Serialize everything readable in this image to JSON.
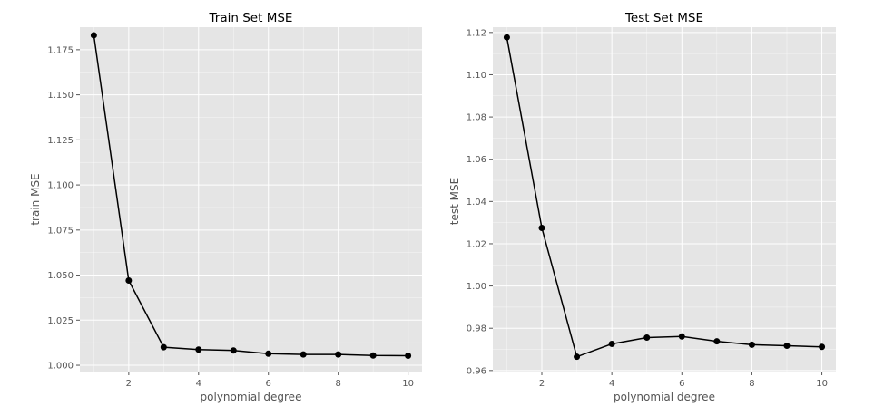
{
  "chart_data": [
    {
      "type": "line",
      "title": "Train Set MSE",
      "xlabel": "polynomial degree",
      "ylabel": "train MSE",
      "xlim": [
        0.6,
        10.4
      ],
      "ylim": [
        0.9965,
        1.1875
      ],
      "xticks": [
        2,
        4,
        6,
        8,
        10
      ],
      "xtick_labels": [
        "2",
        "4",
        "6",
        "8",
        "10"
      ],
      "yticks": [
        1.0,
        1.025,
        1.05,
        1.075,
        1.1,
        1.125,
        1.15,
        1.175
      ],
      "ytick_labels": [
        "1.000",
        "1.025",
        "1.050",
        "1.075",
        "1.100",
        "1.125",
        "1.150",
        "1.175"
      ],
      "grid": true,
      "series": [
        {
          "x": [
            1,
            2,
            3,
            4,
            5,
            6,
            7,
            8,
            9,
            10
          ],
          "values": [
            1.183,
            1.047,
            1.01,
            1.0087,
            1.0082,
            1.0064,
            1.006,
            1.006,
            1.0054,
            1.0053
          ],
          "color": "#000000"
        }
      ]
    },
    {
      "type": "line",
      "title": "Test Set MSE",
      "xlabel": "polynomial degree",
      "ylabel": "test MSE",
      "xlim": [
        0.6,
        10.4
      ],
      "ylim": [
        0.9595,
        1.1225
      ],
      "xticks": [
        2,
        4,
        6,
        8,
        10
      ],
      "xtick_labels": [
        "2",
        "4",
        "6",
        "8",
        "10"
      ],
      "yticks": [
        0.96,
        0.98,
        1.0,
        1.02,
        1.04,
        1.06,
        1.08,
        1.1,
        1.12
      ],
      "ytick_labels": [
        "0.96",
        "0.98",
        "1.00",
        "1.02",
        "1.04",
        "1.06",
        "1.08",
        "1.10",
        "1.12"
      ],
      "grid": true,
      "series": [
        {
          "x": [
            1,
            2,
            3,
            4,
            5,
            6,
            7,
            8,
            9,
            10
          ],
          "values": [
            1.1177,
            1.0275,
            0.9665,
            0.9726,
            0.9756,
            0.9761,
            0.9738,
            0.9722,
            0.9717,
            0.9712
          ],
          "color": "#000000"
        }
      ]
    }
  ],
  "style": {
    "panel_bg": "#e5e5e5",
    "grid_color": "#ffffff",
    "line_color": "#000000",
    "tick_color": "#555555"
  }
}
